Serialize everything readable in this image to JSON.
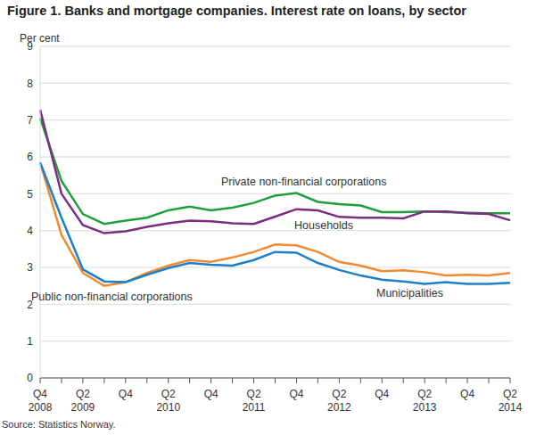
{
  "chart_data": {
    "type": "line",
    "title": "Figure 1. Banks and mortgage companies. Interest rate on loans, by sector",
    "y_label": "Per cent",
    "source": "Source: Statistics Norway.",
    "categories": [
      "Q4 2008",
      null,
      "Q2 2009",
      null,
      "Q4",
      null,
      "Q2 2010",
      null,
      "Q4",
      null,
      "Q2 2011",
      null,
      "Q4",
      null,
      "Q2 2012",
      null,
      "Q4",
      null,
      "Q2 2013",
      null,
      "Q4",
      null,
      "Q2 2014"
    ],
    "series": [
      {
        "name": "Private non-financial corporations",
        "color": "#1f9e3a",
        "values": [
          7.05,
          5.35,
          4.45,
          4.18,
          4.27,
          4.35,
          4.55,
          4.65,
          4.55,
          4.62,
          4.75,
          4.95,
          5.02,
          4.78,
          4.72,
          4.68,
          4.5,
          4.5,
          4.52,
          4.5,
          4.48,
          4.47,
          4.47
        ]
      },
      {
        "name": "Households",
        "color": "#7b2c83",
        "values": [
          7.28,
          5.0,
          4.15,
          3.93,
          3.98,
          4.1,
          4.2,
          4.27,
          4.25,
          4.2,
          4.18,
          4.38,
          4.58,
          4.55,
          4.37,
          4.35,
          4.35,
          4.33,
          4.52,
          4.52,
          4.47,
          4.45,
          4.28
        ]
      },
      {
        "name": "Public non-financial corporations",
        "color": "#f28a30",
        "values": [
          5.85,
          3.88,
          2.85,
          2.5,
          2.6,
          2.85,
          3.05,
          3.2,
          3.15,
          3.27,
          3.42,
          3.62,
          3.6,
          3.42,
          3.15,
          3.05,
          2.9,
          2.92,
          2.87,
          2.78,
          2.8,
          2.78,
          2.85
        ]
      },
      {
        "name": "Municipalities",
        "color": "#1b7fcc",
        "values": [
          5.85,
          4.35,
          2.95,
          2.62,
          2.6,
          2.8,
          2.98,
          3.12,
          3.07,
          3.05,
          3.2,
          3.42,
          3.4,
          3.12,
          2.93,
          2.78,
          2.67,
          2.62,
          2.55,
          2.6,
          2.55,
          2.55,
          2.58
        ]
      }
    ],
    "ylim": [
      0,
      9
    ],
    "yticks": [
      0,
      1,
      2,
      3,
      4,
      5,
      6,
      7,
      8,
      9
    ],
    "grid": true
  }
}
